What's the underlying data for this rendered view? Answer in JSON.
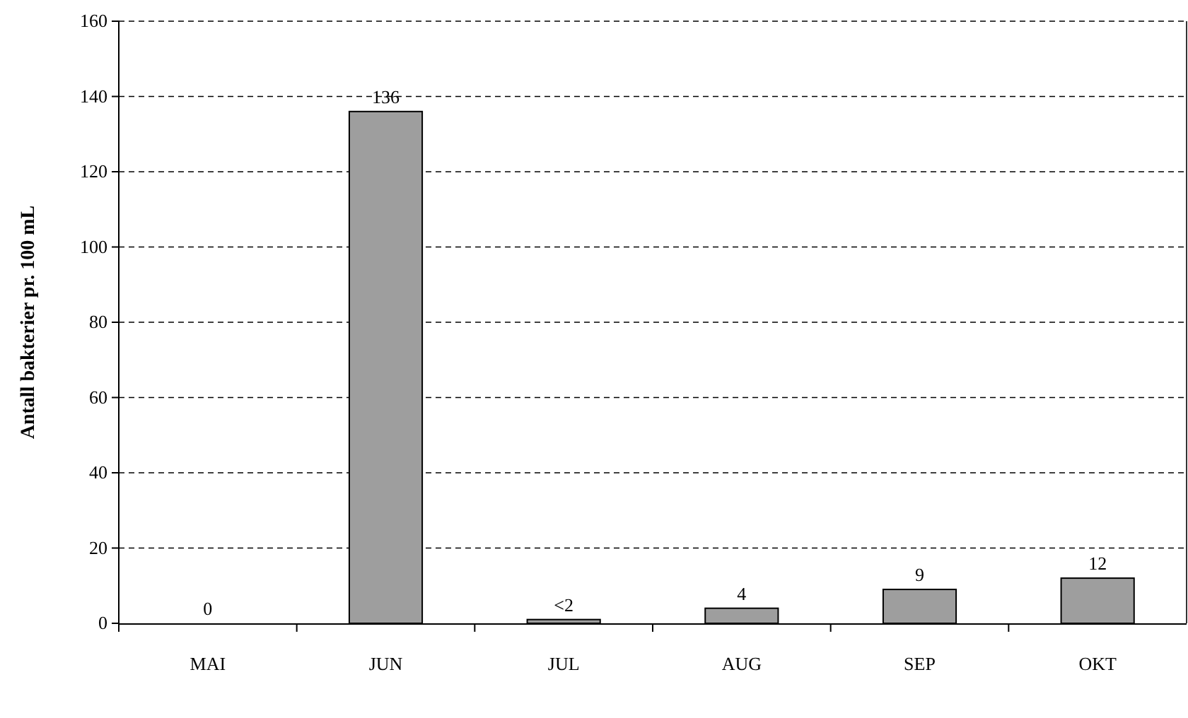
{
  "chart_data": {
    "type": "bar",
    "ylabel": "Antall bakterier pr. 100 mL",
    "categories": [
      "MAI",
      "JUN",
      "JUL",
      "AUG",
      "SEP",
      "OKT"
    ],
    "values": [
      0,
      136,
      1,
      4,
      9,
      12
    ],
    "value_labels": [
      "0",
      "136",
      "<2",
      "4",
      "9",
      "12"
    ],
    "color": "#9e9e9e",
    "ylim": [
      0,
      160
    ],
    "yticks": [
      0,
      20,
      40,
      60,
      80,
      100,
      120,
      140,
      160
    ],
    "grid": "y"
  }
}
